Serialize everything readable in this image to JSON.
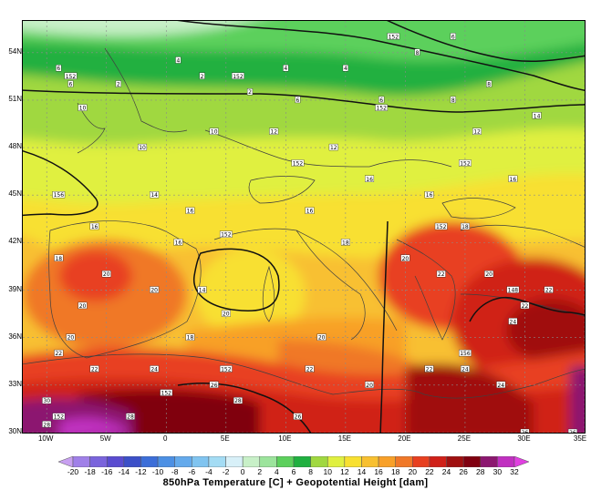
{
  "chart_data": {
    "type": "heatmap",
    "title": "850hPa Temperature [C] + Geopotential Height [dam]",
    "projection": "lat-lon",
    "lon_range": [
      -12,
      35
    ],
    "lat_range": [
      30,
      56
    ],
    "lat_ticks": [
      "54N",
      "51N",
      "48N",
      "45N",
      "42N",
      "39N",
      "36N",
      "33N",
      "30N"
    ],
    "lat_values": [
      54,
      51,
      48,
      45,
      42,
      39,
      36,
      33,
      30
    ],
    "lon_ticks": [
      "10W",
      "5W",
      "0",
      "5E",
      "10E",
      "15E",
      "20E",
      "25E",
      "30E",
      "35E"
    ],
    "lon_values": [
      -10,
      -5,
      0,
      5,
      10,
      15,
      20,
      25,
      30,
      35
    ],
    "colorbar_ticks": [
      "-20",
      "-18",
      "-16",
      "-14",
      "-12",
      "-10",
      "-8",
      "-6",
      "-4",
      "-2",
      "0",
      "2",
      "4",
      "6",
      "8",
      "10",
      "12",
      "14",
      "16",
      "18",
      "20",
      "22",
      "24",
      "26",
      "28",
      "30",
      "32"
    ],
    "colorbar_values": [
      -20,
      -18,
      -16,
      -14,
      -12,
      -10,
      -8,
      -6,
      -4,
      -2,
      0,
      2,
      4,
      6,
      8,
      10,
      12,
      14,
      16,
      18,
      20,
      22,
      24,
      26,
      28,
      30,
      32
    ],
    "colorbar_colors": [
      "#c8a0f0",
      "#a080e8",
      "#7a64dc",
      "#5a4cd0",
      "#3c50c8",
      "#3c6ed8",
      "#4c90e4",
      "#64aaec",
      "#80c4f0",
      "#a4dcf4",
      "#d8f0f8",
      "#c8f0c8",
      "#9ce49c",
      "#5cd05c",
      "#20b040",
      "#a0d840",
      "#e0f040",
      "#f8e030",
      "#f8c030",
      "#f8a028",
      "#f07828",
      "#e84020",
      "#d02018",
      "#a01010",
      "#800010",
      "#8c1870",
      "#c030c0",
      "#e040e0"
    ],
    "temperature_labels": [
      {
        "lat": 53,
        "lon": -9,
        "value": "6"
      },
      {
        "lat": 52,
        "lon": -8,
        "value": "6"
      },
      {
        "lat": 50.5,
        "lon": -7,
        "value": "10"
      },
      {
        "lat": 52,
        "lon": -4,
        "value": "2"
      },
      {
        "lat": 53.5,
        "lon": 1,
        "value": "4"
      },
      {
        "lat": 52.5,
        "lon": 3,
        "value": "2"
      },
      {
        "lat": 51.5,
        "lon": 7,
        "value": "2"
      },
      {
        "lat": 53,
        "lon": 10,
        "value": "4"
      },
      {
        "lat": 51,
        "lon": 11,
        "value": "6"
      },
      {
        "lat": 53,
        "lon": 15,
        "value": "4"
      },
      {
        "lat": 51,
        "lon": 18,
        "value": "6"
      },
      {
        "lat": 54,
        "lon": 21,
        "value": "8"
      },
      {
        "lat": 52,
        "lon": 27,
        "value": "8"
      },
      {
        "lat": 55,
        "lon": 24,
        "value": "6"
      },
      {
        "lat": 51,
        "lon": 24,
        "value": "8"
      },
      {
        "lat": 49,
        "lon": 26,
        "value": "12"
      },
      {
        "lat": 50,
        "lon": 31,
        "value": "14"
      },
      {
        "lat": 48,
        "lon": -2,
        "value": "10"
      },
      {
        "lat": 49,
        "lon": 9,
        "value": "12"
      },
      {
        "lat": 48,
        "lon": 14,
        "value": "12"
      },
      {
        "lat": 49,
        "lon": 4,
        "value": "10"
      },
      {
        "lat": 45,
        "lon": -1,
        "value": "14"
      },
      {
        "lat": 44,
        "lon": 2,
        "value": "16"
      },
      {
        "lat": 43,
        "lon": -6,
        "value": "16"
      },
      {
        "lat": 44,
        "lon": 12,
        "value": "16"
      },
      {
        "lat": 46,
        "lon": 17,
        "value": "16"
      },
      {
        "lat": 45,
        "lon": 22,
        "value": "16"
      },
      {
        "lat": 43,
        "lon": 25,
        "value": "18"
      },
      {
        "lat": 46,
        "lon": 29,
        "value": "16"
      },
      {
        "lat": 41,
        "lon": -9,
        "value": "18"
      },
      {
        "lat": 40,
        "lon": -5,
        "value": "20"
      },
      {
        "lat": 39,
        "lon": -1,
        "value": "20"
      },
      {
        "lat": 38,
        "lon": -7,
        "value": "20"
      },
      {
        "lat": 42,
        "lon": 1,
        "value": "16"
      },
      {
        "lat": 39,
        "lon": 3,
        "value": "14"
      },
      {
        "lat": 42,
        "lon": 15,
        "value": "18"
      },
      {
        "lat": 41,
        "lon": 20,
        "value": "20"
      },
      {
        "lat": 40,
        "lon": 23,
        "value": "22"
      },
      {
        "lat": 40,
        "lon": 27,
        "value": "20"
      },
      {
        "lat": 38,
        "lon": 30,
        "value": "22"
      },
      {
        "lat": 39,
        "lon": 32,
        "value": "22"
      },
      {
        "lat": 37,
        "lon": 29,
        "value": "24"
      },
      {
        "lat": 36,
        "lon": -8,
        "value": "20"
      },
      {
        "lat": 35,
        "lon": -9,
        "value": "22"
      },
      {
        "lat": 34,
        "lon": -6,
        "value": "22"
      },
      {
        "lat": 34,
        "lon": -1,
        "value": "24"
      },
      {
        "lat": 33,
        "lon": 4,
        "value": "26"
      },
      {
        "lat": 32,
        "lon": 6,
        "value": "28"
      },
      {
        "lat": 34,
        "lon": 12,
        "value": "22"
      },
      {
        "lat": 36,
        "lon": 13,
        "value": "20"
      },
      {
        "lat": 33,
        "lon": 17,
        "value": "20"
      },
      {
        "lat": 31,
        "lon": -3,
        "value": "28"
      },
      {
        "lat": 30.5,
        "lon": -10,
        "value": "28"
      },
      {
        "lat": 32,
        "lon": -10,
        "value": "30"
      },
      {
        "lat": 34,
        "lon": 22,
        "value": "22"
      },
      {
        "lat": 34,
        "lon": 25,
        "value": "24"
      },
      {
        "lat": 33,
        "lon": 28,
        "value": "24"
      },
      {
        "lat": 31,
        "lon": 11,
        "value": "26"
      },
      {
        "lat": 30,
        "lon": 30,
        "value": "26"
      },
      {
        "lat": 30,
        "lon": 34,
        "value": "26"
      },
      {
        "lat": 37.5,
        "lon": 5,
        "value": "20"
      },
      {
        "lat": 36,
        "lon": 2,
        "value": "18"
      }
    ],
    "height_labels": [
      {
        "lat": 52.5,
        "lon": -8,
        "value": "152"
      },
      {
        "lat": 52.5,
        "lon": 6,
        "value": "152"
      },
      {
        "lat": 50.5,
        "lon": 18,
        "value": "152"
      },
      {
        "lat": 47,
        "lon": 11,
        "value": "152"
      },
      {
        "lat": 45,
        "lon": -9,
        "value": "156"
      },
      {
        "lat": 42.5,
        "lon": 5,
        "value": "152"
      },
      {
        "lat": 43,
        "lon": 23,
        "value": "152"
      },
      {
        "lat": 47,
        "lon": 25,
        "value": "152"
      },
      {
        "lat": 34,
        "lon": 5,
        "value": "152"
      },
      {
        "lat": 32.5,
        "lon": 0,
        "value": "152"
      },
      {
        "lat": 31,
        "lon": -9,
        "value": "152"
      },
      {
        "lat": 35,
        "lon": 25,
        "value": "156"
      },
      {
        "lat": 39,
        "lon": 29,
        "value": "148"
      },
      {
        "lat": 55,
        "lon": 19,
        "value": "152"
      }
    ],
    "colors": {
      "land_lines": "#404040",
      "grid": "#8a8a8a",
      "contour": "#111111"
    }
  }
}
